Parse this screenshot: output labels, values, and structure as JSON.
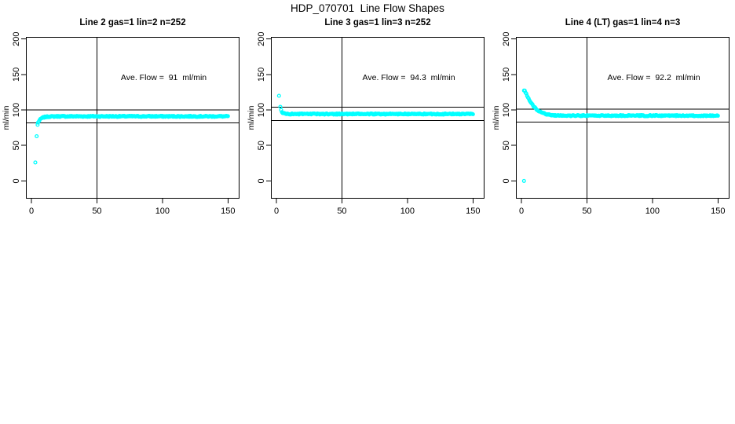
{
  "figure": {
    "title": "HDP_070701  Line Flow Shapes",
    "background": "#ffffff",
    "text_color": "#000000",
    "line_color": "#000000"
  },
  "chart_data": [
    {
      "type": "scatter",
      "title": "Line 2 gas=1 lin=2 n=252",
      "xlabel": "",
      "ylabel": "ml/min",
      "xlim": [
        0,
        150
      ],
      "ylim": [
        0,
        200
      ],
      "xticks": [
        "0",
        "50",
        "100",
        "150"
      ],
      "xtick_values": [
        0,
        50,
        100,
        150
      ],
      "yticks": [
        "0",
        "50",
        "100",
        "150",
        "200"
      ],
      "ytick_values": [
        0,
        50,
        100,
        150,
        200
      ],
      "grid": false,
      "legend": "none",
      "annotation": "Ave. Flow =  91  ml/min",
      "annotation_xy": [
        101,
        145
      ],
      "ave_flow_ml_min": 91,
      "n": 252,
      "marker": "open-circle",
      "marker_color": "#00FFFF",
      "vline_x": 50,
      "hlines_y": [
        100.1,
        81.9
      ],
      "outlier_points": [
        [
          3,
          26
        ],
        [
          4,
          63
        ],
        [
          4.7,
          79
        ]
      ],
      "curve_anchors": [
        [
          5,
          82
        ],
        [
          6,
          85
        ],
        [
          7,
          87.2
        ],
        [
          8,
          88.6
        ],
        [
          9,
          89.4
        ],
        [
          10,
          89.9
        ],
        [
          12,
          90.5
        ],
        [
          15,
          90.8
        ],
        [
          20,
          91
        ],
        [
          30,
          91
        ],
        [
          50,
          91
        ],
        [
          75,
          91
        ],
        [
          100,
          91
        ],
        [
          125,
          91
        ],
        [
          150,
          91
        ]
      ],
      "n_curve_points": 250,
      "jitter": 1.5,
      "seed": 7
    },
    {
      "type": "scatter",
      "title": "Line 3 gas=1 lin=3 n=252",
      "xlabel": "",
      "ylabel": "ml/min",
      "xlim": [
        0,
        150
      ],
      "ylim": [
        0,
        200
      ],
      "xticks": [
        "0",
        "50",
        "100",
        "150"
      ],
      "xtick_values": [
        0,
        50,
        100,
        150
      ],
      "yticks": [
        "0",
        "50",
        "100",
        "150",
        "200"
      ],
      "ytick_values": [
        0,
        50,
        100,
        150,
        200
      ],
      "grid": false,
      "legend": "none",
      "annotation": "Ave. Flow =  94.3  ml/min",
      "annotation_xy": [
        101,
        145
      ],
      "ave_flow_ml_min": 94.3,
      "n": 252,
      "marker": "open-circle",
      "marker_color": "#00FFFF",
      "vline_x": 50,
      "hlines_y": [
        103.7,
        84.9
      ],
      "outlier_points": [
        [
          2,
          120
        ]
      ],
      "curve_anchors": [
        [
          3,
          104
        ],
        [
          3.5,
          100.2
        ],
        [
          4,
          97.8
        ],
        [
          5,
          95.8
        ],
        [
          6,
          95
        ],
        [
          7,
          94.7
        ],
        [
          8,
          94.5
        ],
        [
          10,
          94.3
        ],
        [
          20,
          94.3
        ],
        [
          50,
          94.3
        ],
        [
          100,
          94.3
        ],
        [
          150,
          94.3
        ]
      ],
      "n_curve_points": 250,
      "jitter": 1.5,
      "seed": 23
    },
    {
      "type": "scatter",
      "title": "Line 4 (LT) gas=1 lin=4 n=3",
      "xlabel": "",
      "ylabel": "ml/min",
      "xlim": [
        0,
        150
      ],
      "ylim": [
        0,
        200
      ],
      "xticks": [
        "0",
        "50",
        "100",
        "150"
      ],
      "xtick_values": [
        0,
        50,
        100,
        150
      ],
      "yticks": [
        "0",
        "50",
        "100",
        "150",
        "200"
      ],
      "ytick_values": [
        0,
        50,
        100,
        150,
        200
      ],
      "grid": false,
      "legend": "none",
      "annotation": "Ave. Flow =  92.2  ml/min",
      "annotation_xy": [
        101,
        145
      ],
      "ave_flow_ml_min": 92.2,
      "n": 3,
      "marker": "open-circle",
      "marker_color": "#00FFFF",
      "vline_x": 50,
      "hlines_y": [
        101.4,
        83
      ],
      "outlier_points": [
        [
          2,
          0
        ]
      ],
      "curve_anchors": [
        [
          2,
          128
        ],
        [
          3,
          125.5
        ],
        [
          4,
          121.5
        ],
        [
          5,
          117.8
        ],
        [
          6,
          114.2
        ],
        [
          7,
          111
        ],
        [
          8,
          108.3
        ],
        [
          9,
          105.9
        ],
        [
          10,
          103.8
        ],
        [
          11,
          102
        ],
        [
          12,
          100.4
        ],
        [
          13,
          99
        ],
        [
          14,
          97.8
        ],
        [
          15,
          96.8
        ],
        [
          16,
          95.9
        ],
        [
          17,
          95.2
        ],
        [
          18,
          94.6
        ],
        [
          19,
          94.1
        ],
        [
          20,
          93.6
        ],
        [
          22,
          93
        ],
        [
          24,
          92.6
        ],
        [
          26,
          92.3
        ],
        [
          28,
          92.2
        ],
        [
          30,
          92.1
        ],
        [
          35,
          92
        ],
        [
          40,
          92
        ],
        [
          50,
          92
        ],
        [
          75,
          92
        ],
        [
          100,
          92
        ],
        [
          125,
          91.9
        ],
        [
          150,
          91.9
        ]
      ],
      "n_curve_points": 250,
      "jitter": 1.5,
      "seed": 41
    }
  ]
}
